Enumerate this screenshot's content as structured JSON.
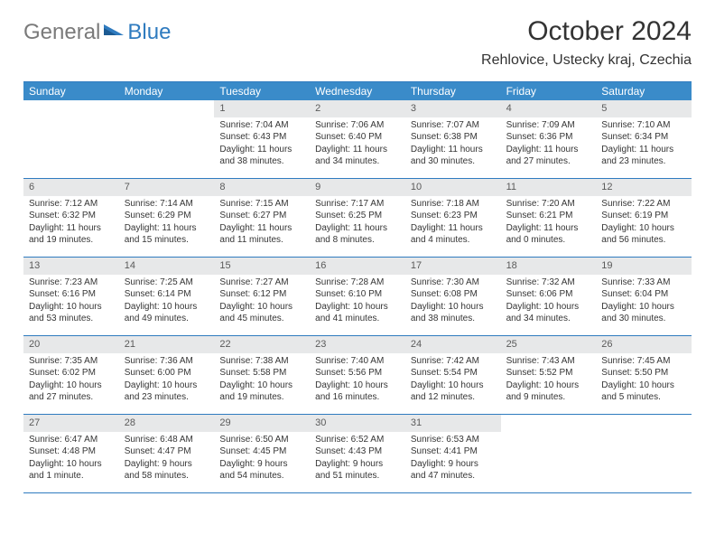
{
  "logo": {
    "part1": "General",
    "part2": "Blue"
  },
  "title": "October 2024",
  "location": "Rehlovice, Ustecky kraj, Czechia",
  "colors": {
    "header_bg": "#3a8bc9",
    "header_text": "#ffffff",
    "rule": "#2f7bbf",
    "daynum_bg": "#e7e8e9",
    "text": "#333333",
    "logo_gray": "#7a7a7a",
    "logo_blue": "#2f7bbf"
  },
  "weekdays": [
    "Sunday",
    "Monday",
    "Tuesday",
    "Wednesday",
    "Thursday",
    "Friday",
    "Saturday"
  ],
  "weeks": [
    [
      {
        "empty": true
      },
      {
        "empty": true
      },
      {
        "num": "1",
        "sunrise": "Sunrise: 7:04 AM",
        "sunset": "Sunset: 6:43 PM",
        "daylight1": "Daylight: 11 hours",
        "daylight2": "and 38 minutes."
      },
      {
        "num": "2",
        "sunrise": "Sunrise: 7:06 AM",
        "sunset": "Sunset: 6:40 PM",
        "daylight1": "Daylight: 11 hours",
        "daylight2": "and 34 minutes."
      },
      {
        "num": "3",
        "sunrise": "Sunrise: 7:07 AM",
        "sunset": "Sunset: 6:38 PM",
        "daylight1": "Daylight: 11 hours",
        "daylight2": "and 30 minutes."
      },
      {
        "num": "4",
        "sunrise": "Sunrise: 7:09 AM",
        "sunset": "Sunset: 6:36 PM",
        "daylight1": "Daylight: 11 hours",
        "daylight2": "and 27 minutes."
      },
      {
        "num": "5",
        "sunrise": "Sunrise: 7:10 AM",
        "sunset": "Sunset: 6:34 PM",
        "daylight1": "Daylight: 11 hours",
        "daylight2": "and 23 minutes."
      }
    ],
    [
      {
        "num": "6",
        "sunrise": "Sunrise: 7:12 AM",
        "sunset": "Sunset: 6:32 PM",
        "daylight1": "Daylight: 11 hours",
        "daylight2": "and 19 minutes."
      },
      {
        "num": "7",
        "sunrise": "Sunrise: 7:14 AM",
        "sunset": "Sunset: 6:29 PM",
        "daylight1": "Daylight: 11 hours",
        "daylight2": "and 15 minutes."
      },
      {
        "num": "8",
        "sunrise": "Sunrise: 7:15 AM",
        "sunset": "Sunset: 6:27 PM",
        "daylight1": "Daylight: 11 hours",
        "daylight2": "and 11 minutes."
      },
      {
        "num": "9",
        "sunrise": "Sunrise: 7:17 AM",
        "sunset": "Sunset: 6:25 PM",
        "daylight1": "Daylight: 11 hours",
        "daylight2": "and 8 minutes."
      },
      {
        "num": "10",
        "sunrise": "Sunrise: 7:18 AM",
        "sunset": "Sunset: 6:23 PM",
        "daylight1": "Daylight: 11 hours",
        "daylight2": "and 4 minutes."
      },
      {
        "num": "11",
        "sunrise": "Sunrise: 7:20 AM",
        "sunset": "Sunset: 6:21 PM",
        "daylight1": "Daylight: 11 hours",
        "daylight2": "and 0 minutes."
      },
      {
        "num": "12",
        "sunrise": "Sunrise: 7:22 AM",
        "sunset": "Sunset: 6:19 PM",
        "daylight1": "Daylight: 10 hours",
        "daylight2": "and 56 minutes."
      }
    ],
    [
      {
        "num": "13",
        "sunrise": "Sunrise: 7:23 AM",
        "sunset": "Sunset: 6:16 PM",
        "daylight1": "Daylight: 10 hours",
        "daylight2": "and 53 minutes."
      },
      {
        "num": "14",
        "sunrise": "Sunrise: 7:25 AM",
        "sunset": "Sunset: 6:14 PM",
        "daylight1": "Daylight: 10 hours",
        "daylight2": "and 49 minutes."
      },
      {
        "num": "15",
        "sunrise": "Sunrise: 7:27 AM",
        "sunset": "Sunset: 6:12 PM",
        "daylight1": "Daylight: 10 hours",
        "daylight2": "and 45 minutes."
      },
      {
        "num": "16",
        "sunrise": "Sunrise: 7:28 AM",
        "sunset": "Sunset: 6:10 PM",
        "daylight1": "Daylight: 10 hours",
        "daylight2": "and 41 minutes."
      },
      {
        "num": "17",
        "sunrise": "Sunrise: 7:30 AM",
        "sunset": "Sunset: 6:08 PM",
        "daylight1": "Daylight: 10 hours",
        "daylight2": "and 38 minutes."
      },
      {
        "num": "18",
        "sunrise": "Sunrise: 7:32 AM",
        "sunset": "Sunset: 6:06 PM",
        "daylight1": "Daylight: 10 hours",
        "daylight2": "and 34 minutes."
      },
      {
        "num": "19",
        "sunrise": "Sunrise: 7:33 AM",
        "sunset": "Sunset: 6:04 PM",
        "daylight1": "Daylight: 10 hours",
        "daylight2": "and 30 minutes."
      }
    ],
    [
      {
        "num": "20",
        "sunrise": "Sunrise: 7:35 AM",
        "sunset": "Sunset: 6:02 PM",
        "daylight1": "Daylight: 10 hours",
        "daylight2": "and 27 minutes."
      },
      {
        "num": "21",
        "sunrise": "Sunrise: 7:36 AM",
        "sunset": "Sunset: 6:00 PM",
        "daylight1": "Daylight: 10 hours",
        "daylight2": "and 23 minutes."
      },
      {
        "num": "22",
        "sunrise": "Sunrise: 7:38 AM",
        "sunset": "Sunset: 5:58 PM",
        "daylight1": "Daylight: 10 hours",
        "daylight2": "and 19 minutes."
      },
      {
        "num": "23",
        "sunrise": "Sunrise: 7:40 AM",
        "sunset": "Sunset: 5:56 PM",
        "daylight1": "Daylight: 10 hours",
        "daylight2": "and 16 minutes."
      },
      {
        "num": "24",
        "sunrise": "Sunrise: 7:42 AM",
        "sunset": "Sunset: 5:54 PM",
        "daylight1": "Daylight: 10 hours",
        "daylight2": "and 12 minutes."
      },
      {
        "num": "25",
        "sunrise": "Sunrise: 7:43 AM",
        "sunset": "Sunset: 5:52 PM",
        "daylight1": "Daylight: 10 hours",
        "daylight2": "and 9 minutes."
      },
      {
        "num": "26",
        "sunrise": "Sunrise: 7:45 AM",
        "sunset": "Sunset: 5:50 PM",
        "daylight1": "Daylight: 10 hours",
        "daylight2": "and 5 minutes."
      }
    ],
    [
      {
        "num": "27",
        "sunrise": "Sunrise: 6:47 AM",
        "sunset": "Sunset: 4:48 PM",
        "daylight1": "Daylight: 10 hours",
        "daylight2": "and 1 minute."
      },
      {
        "num": "28",
        "sunrise": "Sunrise: 6:48 AM",
        "sunset": "Sunset: 4:47 PM",
        "daylight1": "Daylight: 9 hours",
        "daylight2": "and 58 minutes."
      },
      {
        "num": "29",
        "sunrise": "Sunrise: 6:50 AM",
        "sunset": "Sunset: 4:45 PM",
        "daylight1": "Daylight: 9 hours",
        "daylight2": "and 54 minutes."
      },
      {
        "num": "30",
        "sunrise": "Sunrise: 6:52 AM",
        "sunset": "Sunset: 4:43 PM",
        "daylight1": "Daylight: 9 hours",
        "daylight2": "and 51 minutes."
      },
      {
        "num": "31",
        "sunrise": "Sunrise: 6:53 AM",
        "sunset": "Sunset: 4:41 PM",
        "daylight1": "Daylight: 9 hours",
        "daylight2": "and 47 minutes."
      },
      {
        "empty": true
      },
      {
        "empty": true
      }
    ]
  ]
}
